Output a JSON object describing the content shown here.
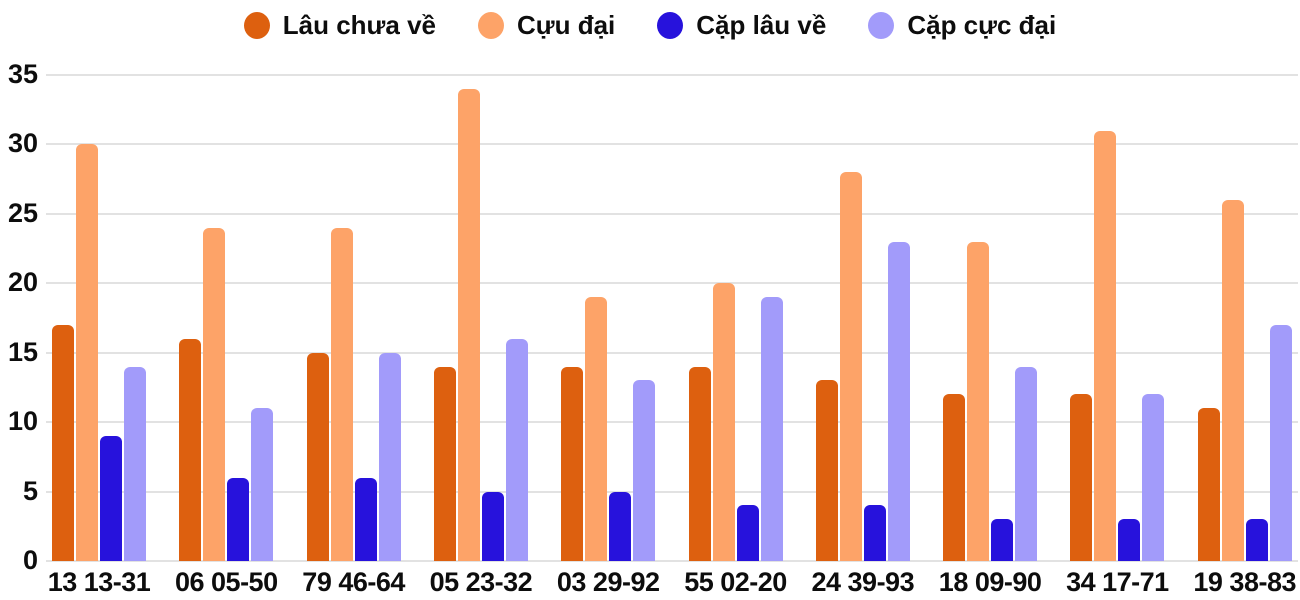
{
  "chart_data": {
    "type": "bar",
    "title": "",
    "xlabel": "",
    "ylabel": "",
    "categories": [
      "13 13-31",
      "06 05-50",
      "79 46-64",
      "05 23-32",
      "03 29-92",
      "55 02-20",
      "24 39-93",
      "18 09-90",
      "34 17-71",
      "19 38-83"
    ],
    "series": [
      {
        "name": "Lâu chưa về",
        "color": "#dd600f",
        "values": [
          17,
          16,
          15,
          14,
          14,
          14,
          13,
          12,
          12,
          11
        ]
      },
      {
        "name": "Cựu đại",
        "color": "#fda368",
        "values": [
          30,
          24,
          24,
          34,
          19,
          20,
          28,
          23,
          31,
          26
        ]
      },
      {
        "name": "Cặp lâu về",
        "color": "#2712dc",
        "values": [
          9,
          6,
          6,
          5,
          5,
          4,
          4,
          3,
          3,
          3
        ]
      },
      {
        "name": "Cặp cực đại",
        "color": "#a29bfa",
        "values": [
          14,
          11,
          15,
          16,
          13,
          19,
          23,
          14,
          12,
          17
        ]
      }
    ],
    "ylim": [
      0,
      35
    ],
    "yticks": [
      0,
      5,
      10,
      15,
      20,
      25,
      30,
      35
    ],
    "grid": true,
    "legend_position": "top"
  },
  "colors": {
    "background": "#ffffff",
    "grid": "#e2e2e2",
    "text": "#0d0d0d"
  }
}
